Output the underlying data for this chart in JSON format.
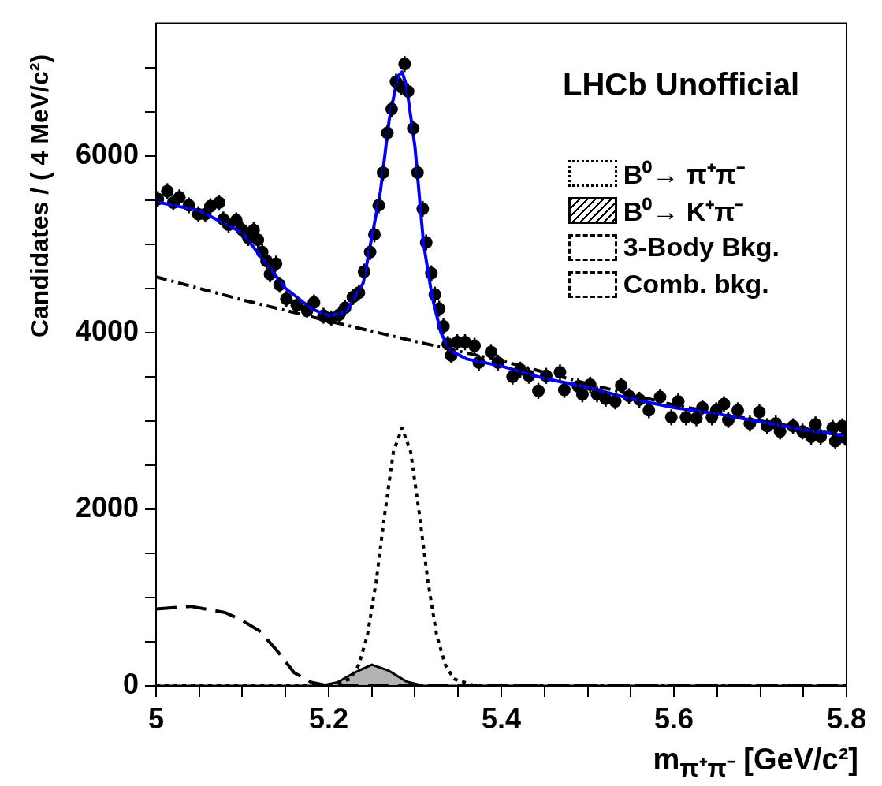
{
  "chart_data": {
    "type": "scatter",
    "xlabel": "m$_{π⁺π⁻}$ [GeV/c²]",
    "ylabel": "Candidates / ( 4 MeV/c²)",
    "annotations": [
      "LHCb Unofficial"
    ],
    "xlim": [
      5,
      5.8
    ],
    "xticks": [
      5,
      {
        "value": 5.05,
        "label": null
      },
      {
        "value": 5.1,
        "label": null
      },
      {
        "value": 5.15,
        "label": null
      },
      5.2,
      {
        "value": 5.25,
        "label": null
      },
      {
        "value": 5.3,
        "label": null
      },
      {
        "value": 5.35,
        "label": null
      },
      5.4,
      {
        "value": 5.45,
        "label": null
      },
      {
        "value": 5.5,
        "label": null
      },
      {
        "value": 5.55,
        "label": null
      },
      5.6,
      {
        "value": 5.65,
        "label": null
      },
      {
        "value": 5.7,
        "label": null
      },
      {
        "value": 5.75,
        "label": null
      },
      5.8
    ],
    "ylim": [
      0,
      7500
    ],
    "yticks": [
      0,
      {
        "value": 500,
        "label": null
      },
      {
        "value": 1000,
        "label": null
      },
      {
        "value": 1500,
        "label": null
      },
      2000,
      {
        "value": 2500,
        "label": null
      },
      {
        "value": 3000,
        "label": null
      },
      {
        "value": 3500,
        "label": null
      },
      4000,
      {
        "value": 4500,
        "label": null
      },
      {
        "value": 5000,
        "label": null
      },
      {
        "value": 5500,
        "label": null
      },
      6000,
      {
        "value": 6500,
        "label": null
      },
      {
        "value": 7000,
        "label": null
      }
    ],
    "grid": false,
    "legend": "top right",
    "series": [
      {
        "color": "#000000",
        "marker": "circle",
        "x": [
          5.002,
          5.013,
          5.02,
          5.027,
          5.038,
          5.049,
          5.057,
          5.063,
          5.073,
          5.078,
          5.084,
          5.093,
          5.1,
          5.107,
          5.113,
          5.118,
          5.123,
          5.128,
          5.132,
          5.139,
          5.143,
          5.151,
          5.163,
          5.175,
          5.183,
          5.194,
          5.203,
          5.212,
          5.219,
          5.228,
          5.235,
          5.241,
          5.248,
          5.253,
          5.258,
          5.263,
          5.268,
          5.273,
          5.278,
          5.284,
          5.288,
          5.292,
          5.298,
          5.303,
          5.309,
          5.313,
          5.319,
          5.323,
          5.328,
          5.333,
          5.338,
          5.342,
          5.349,
          5.358,
          5.369,
          5.374,
          5.388,
          5.396,
          5.413,
          5.422,
          5.432,
          5.443,
          5.452,
          5.468,
          5.473,
          5.489,
          5.494,
          5.503,
          5.511,
          5.521,
          5.532,
          5.539,
          5.548,
          5.56,
          5.571,
          5.584,
          5.597,
          5.605,
          5.614,
          5.626,
          5.633,
          5.644,
          5.649,
          5.658,
          5.663,
          5.674,
          5.688,
          5.699,
          5.708,
          5.718,
          5.723,
          5.738,
          5.749,
          5.759,
          5.764,
          5.77,
          5.784,
          5.787,
          5.795,
          5.798
        ],
        "values": [
          5510,
          5600,
          5470,
          5530,
          5440,
          5340,
          5340,
          5430,
          5470,
          5280,
          5220,
          5270,
          5160,
          5070,
          5160,
          5050,
          4910,
          4810,
          4660,
          4780,
          4540,
          4380,
          4310,
          4250,
          4340,
          4190,
          4160,
          4200,
          4280,
          4400,
          4450,
          4690,
          4910,
          5110,
          5440,
          5810,
          6260,
          6530,
          6840,
          6780,
          7040,
          6730,
          6310,
          5810,
          5400,
          5020,
          4670,
          4430,
          4270,
          4070,
          3870,
          3740,
          3890,
          3890,
          3850,
          3660,
          3780,
          3660,
          3500,
          3580,
          3510,
          3340,
          3510,
          3550,
          3350,
          3390,
          3300,
          3410,
          3300,
          3250,
          3220,
          3400,
          3280,
          3240,
          3120,
          3270,
          3040,
          3220,
          3040,
          3030,
          3150,
          3040,
          3120,
          3190,
          3010,
          3120,
          2970,
          3100,
          2940,
          2970,
          2880,
          2940,
          2880,
          2820,
          2960,
          2820,
          2920,
          2770,
          2940,
          2810
        ],
        "errors": [
          90,
          90,
          90,
          90,
          90,
          90,
          90,
          90,
          90,
          90,
          90,
          90,
          90,
          90,
          90,
          90,
          90,
          90,
          90,
          90,
          90,
          90,
          90,
          90,
          90,
          90,
          90,
          90,
          90,
          90,
          90,
          90,
          90,
          90,
          90,
          90,
          90,
          90,
          90,
          90,
          90,
          90,
          90,
          90,
          90,
          90,
          90,
          90,
          90,
          90,
          90,
          90,
          90,
          90,
          90,
          90,
          90,
          90,
          90,
          90,
          90,
          90,
          90,
          90,
          90,
          90,
          90,
          90,
          90,
          90,
          90,
          90,
          90,
          90,
          90,
          90,
          90,
          90,
          90,
          90,
          90,
          90,
          90,
          90,
          90,
          90,
          90,
          90,
          90,
          90,
          90,
          90,
          90,
          90,
          90,
          90,
          90,
          90,
          90,
          90
        ]
      },
      {
        "type": "line",
        "color": "#0000ff",
        "line_style": "solid",
        "x": [
          5,
          5.05,
          5.1,
          5.15,
          5.18,
          5.2,
          5.22,
          5.24,
          5.26,
          5.27,
          5.28,
          5.285,
          5.29,
          5.3,
          5.31,
          5.32,
          5.33,
          5.34,
          5.36,
          5.4,
          5.45,
          5.5,
          5.55,
          5.6,
          5.65,
          5.7,
          5.75,
          5.8
        ],
        "values": [
          5480,
          5380,
          5130,
          4500,
          4270,
          4190,
          4230,
          4560,
          5600,
          6400,
          6900,
          6950,
          6800,
          6100,
          5000,
          4400,
          4000,
          3800,
          3700,
          3620,
          3480,
          3380,
          3250,
          3150,
          3080,
          2990,
          2900,
          2830
        ]
      },
      {
        "type": "line",
        "name": "B⁰→ π⁺π⁻",
        "color": "#000000",
        "line_style": "dotted",
        "x": [
          5,
          5.1,
          5.2,
          5.225,
          5.235,
          5.245,
          5.255,
          5.265,
          5.275,
          5.285,
          5.295,
          5.305,
          5.315,
          5.325,
          5.335,
          5.345,
          5.37,
          5.5,
          5.8
        ],
        "values": [
          0,
          0,
          0,
          80,
          240,
          580,
          1180,
          1950,
          2650,
          2920,
          2650,
          1950,
          1180,
          580,
          240,
          80,
          0,
          0,
          0
        ]
      },
      {
        "type": "area",
        "name": "B⁰→ K⁺π⁻",
        "color": "#000000",
        "line_style": "solid",
        "x": [
          5,
          5.19,
          5.21,
          5.23,
          5.25,
          5.27,
          5.29,
          5.31,
          5.8
        ],
        "values": [
          0,
          0,
          40,
          150,
          240,
          170,
          50,
          0,
          0
        ]
      },
      {
        "type": "line",
        "name": "3-Body Bkg.",
        "color": "#000000",
        "line_style": "dashed",
        "x": [
          5,
          5.04,
          5.08,
          5.1,
          5.12,
          5.14,
          5.16,
          5.18,
          5.2,
          5.25,
          5.8
        ],
        "values": [
          870,
          900,
          830,
          740,
          620,
          400,
          150,
          40,
          0,
          0,
          0
        ]
      },
      {
        "type": "line",
        "name": "Comb. bkg.",
        "color": "#000000",
        "line_style": "dashdot",
        "x": [
          5,
          5.1,
          5.2,
          5.3,
          5.4,
          5.5,
          5.6,
          5.7,
          5.8
        ],
        "values": [
          4630,
          4370,
          4130,
          3900,
          3680,
          3420,
          3180,
          3000,
          2830
        ]
      }
    ]
  }
}
